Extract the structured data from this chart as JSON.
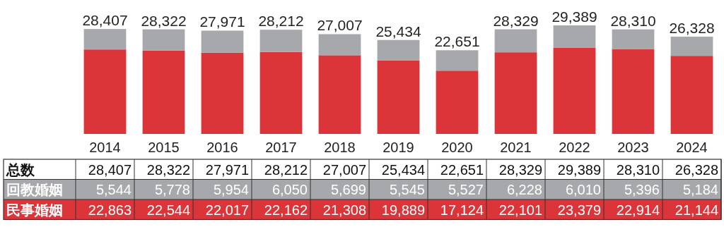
{
  "chart_data": {
    "type": "bar",
    "stacked": true,
    "categories": [
      "2014",
      "2015",
      "2016",
      "2017",
      "2018",
      "2019",
      "2020",
      "2021",
      "2022",
      "2023",
      "2024"
    ],
    "series": [
      {
        "name": "民事婚姻",
        "color": "#dc3539",
        "values": [
          22863,
          22544,
          22017,
          22162,
          21308,
          19889,
          17124,
          22101,
          23379,
          22914,
          21144
        ],
        "value_labels": [
          "22,863",
          "22,544",
          "22,017",
          "22,162",
          "21,308",
          "19,889",
          "17,124",
          "22,101",
          "23,379",
          "22,914",
          "21,144"
        ]
      },
      {
        "name": "回教婚姻",
        "color": "#a7a8ab",
        "values": [
          5544,
          5778,
          5954,
          6050,
          5699,
          5545,
          5527,
          6228,
          6010,
          5396,
          5184
        ],
        "value_labels": [
          "5,544",
          "5,778",
          "5,954",
          "6,050",
          "5,699",
          "5,545",
          "5,527",
          "6,228",
          "6,010",
          "5,396",
          "5,184"
        ]
      }
    ],
    "totals": [
      "28,407",
      "28,322",
      "27,971",
      "28,212",
      "27,007",
      "25,434",
      "22,651",
      "28,329",
      "29,389",
      "28,310",
      "26,328"
    ],
    "annotations": [
      "总数"
    ]
  }
}
